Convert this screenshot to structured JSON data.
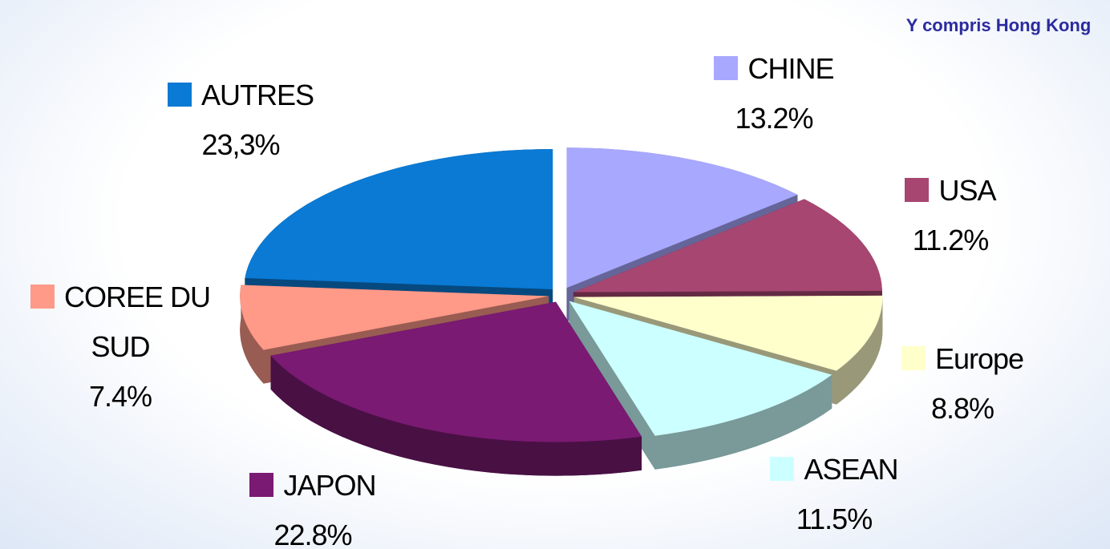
{
  "chart_data": {
    "type": "pie",
    "annotation": "Y compris Hong Kong",
    "categories": [
      "CHINE",
      "USA",
      "Europe",
      "ASEAN",
      "JAPON",
      "COREE DU SUD",
      "AUTRES"
    ],
    "values": [
      13.2,
      11.2,
      8.8,
      11.5,
      22.8,
      7.4,
      23.3
    ],
    "value_labels": [
      "13.2%",
      "11.2%",
      "8.8%",
      "11.5%",
      "22.8%",
      "7.4%",
      "23,3%"
    ],
    "colors": [
      "#a8a8ff",
      "#a64671",
      "#ffffcc",
      "#ccffff",
      "#7a1a72",
      "#ff9988",
      "#0a7ad4"
    ]
  }
}
